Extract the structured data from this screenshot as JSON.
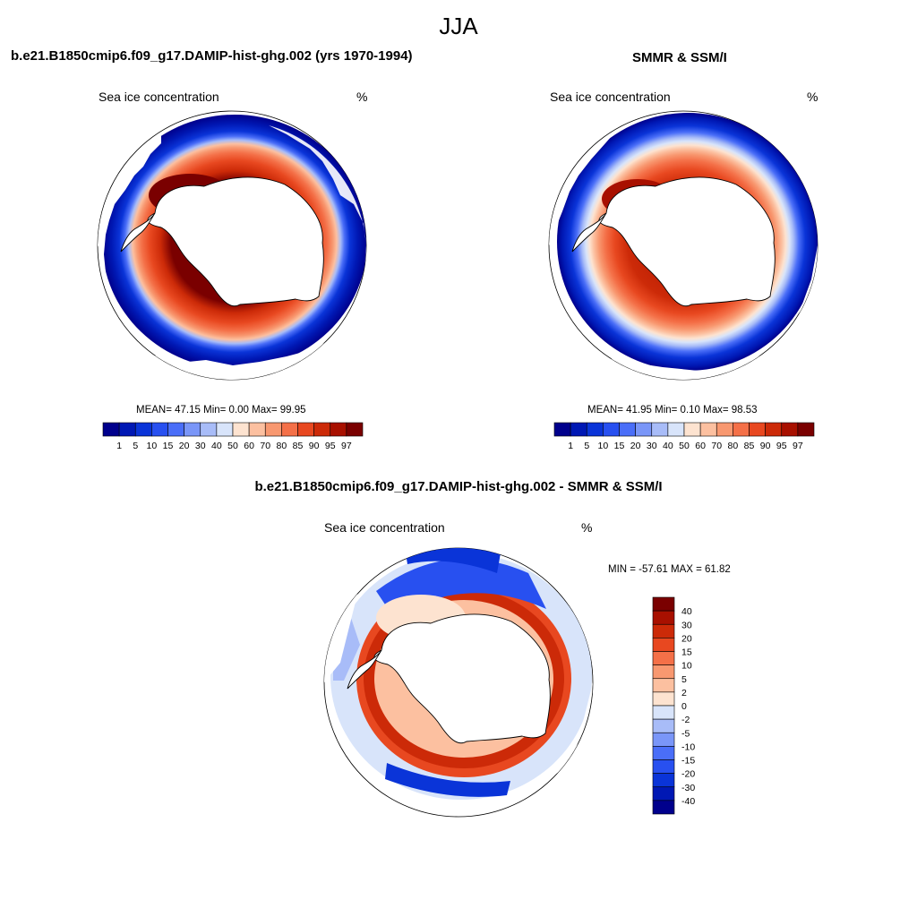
{
  "chart_data": {
    "type": "heatmap",
    "title": "JJA",
    "panels": [
      {
        "id": "model",
        "title": "b.e21.B1850cmip6.f09_g17.DAMIP-hist-ghg.002 (yrs 1970-1994)",
        "variable": "Sea ice concentration",
        "units": "%",
        "mean": "47.15",
        "min": "0.00",
        "max": "99.95",
        "stats_labels": {
          "mean": "MEAN=",
          "min": "Min=",
          "max": "Max="
        },
        "levels": [
          "1",
          "5",
          "10",
          "15",
          "20",
          "30",
          "40",
          "50",
          "60",
          "70",
          "80",
          "85",
          "90",
          "95",
          "97"
        ],
        "colors": [
          "#00008c",
          "#0018b4",
          "#0a34d8",
          "#2850f0",
          "#4a6ef8",
          "#7a96f8",
          "#a8bcf8",
          "#d8e4fa",
          "#fde3d0",
          "#fcc0a0",
          "#f89870",
          "#f47048",
          "#e84820",
          "#cc2a08",
          "#a81000",
          "#7a0000"
        ],
        "stats_line": "MEAN=  47.15  Min=   0.00  Max=  99.95"
      },
      {
        "id": "obs",
        "title": "SMMR & SSM/I",
        "variable": "Sea ice concentration",
        "units": "%",
        "mean": "41.95",
        "min": "0.10",
        "max": "98.53",
        "levels": [
          "1",
          "5",
          "10",
          "15",
          "20",
          "30",
          "40",
          "50",
          "60",
          "70",
          "80",
          "85",
          "90",
          "95",
          "97"
        ],
        "colors": [
          "#00008c",
          "#0018b4",
          "#0a34d8",
          "#2850f0",
          "#4a6ef8",
          "#7a96f8",
          "#a8bcf8",
          "#d8e4fa",
          "#fde3d0",
          "#fcc0a0",
          "#f89870",
          "#f47048",
          "#e84820",
          "#cc2a08",
          "#a81000",
          "#7a0000"
        ],
        "stats_line": "MEAN=  41.95  Min=   0.10  Max=  98.53"
      },
      {
        "id": "diff",
        "title": "b.e21.B1850cmip6.f09_g17.DAMIP-hist-ghg.002 - SMMR & SSM/I",
        "variable": "Sea ice concentration",
        "units": "%",
        "min": "-57.61",
        "max": "61.82",
        "minmax_line": "MIN = -57.61 MAX =  61.82",
        "levels": [
          "40",
          "30",
          "20",
          "15",
          "10",
          "5",
          "2",
          "0",
          "-2",
          "-5",
          "-10",
          "-15",
          "-20",
          "-30",
          "-40"
        ],
        "colors": [
          "#7a0000",
          "#a81000",
          "#cc2a08",
          "#e84820",
          "#f47048",
          "#f89870",
          "#fcc0a0",
          "#fde3d0",
          "#d8e4fa",
          "#a8bcf8",
          "#7a96f8",
          "#4a6ef8",
          "#2850f0",
          "#0a34d8",
          "#0018b4",
          "#00008c"
        ]
      }
    ]
  }
}
